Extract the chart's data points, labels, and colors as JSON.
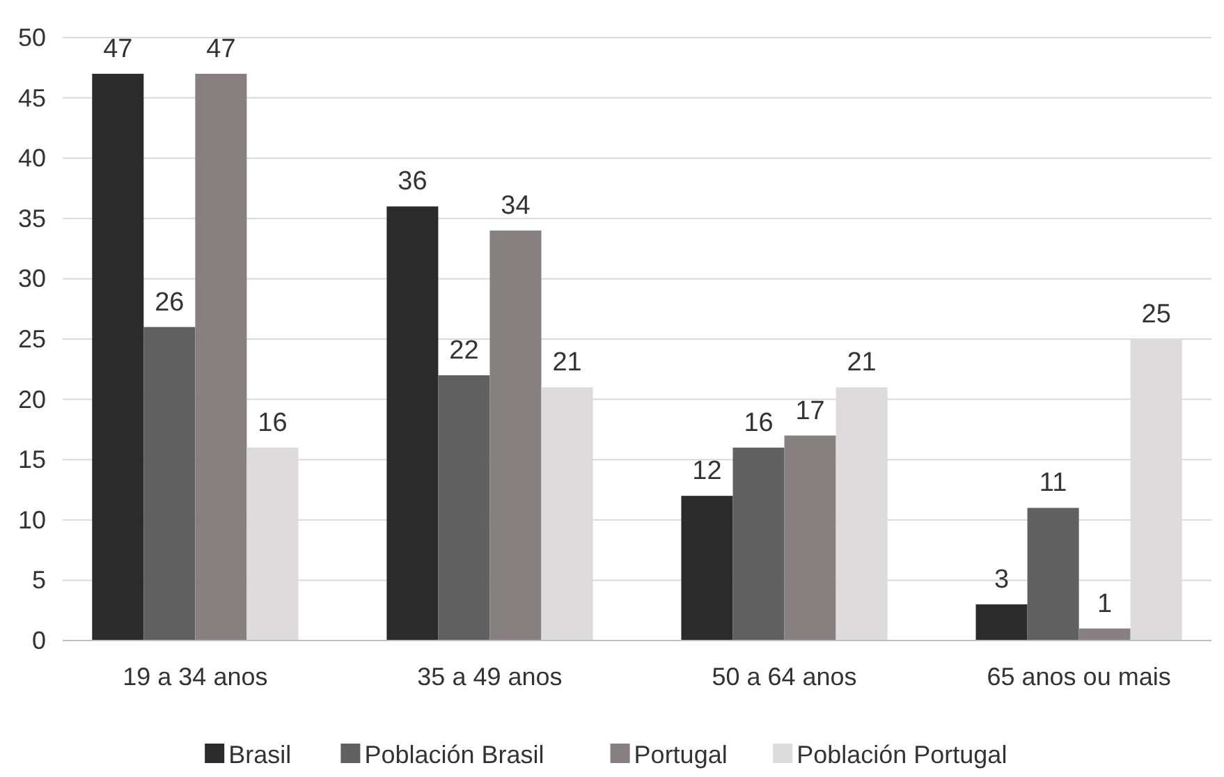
{
  "chart_data": {
    "type": "bar",
    "categories": [
      "19 a 34 anos",
      "35 a 49 anos",
      "50 a 64 anos",
      "65 anos ou mais"
    ],
    "series": [
      {
        "name": "Brasil",
        "color": "#2b2b2b",
        "values": [
          47,
          36,
          12,
          3
        ]
      },
      {
        "name": "Población Brasil",
        "color": "#606060",
        "values": [
          26,
          22,
          16,
          11
        ]
      },
      {
        "name": "Portugal",
        "color": "#868080",
        "values": [
          47,
          34,
          17,
          1
        ]
      },
      {
        "name": "Población Portugal",
        "color": "#dddbdc",
        "values": [
          16,
          21,
          21,
          25
        ]
      }
    ],
    "ylim": [
      0,
      50
    ],
    "yticks": [
      0,
      5,
      10,
      15,
      20,
      25,
      30,
      35,
      40,
      45,
      50
    ],
    "grid": "y",
    "legend": "bottom",
    "data_labels": true
  }
}
